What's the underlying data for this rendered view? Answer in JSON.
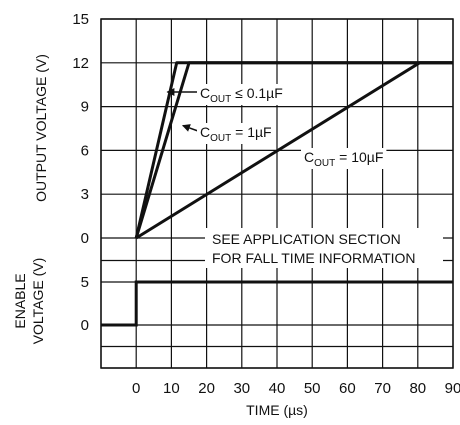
{
  "chart_data": {
    "type": "line",
    "xlabel": "TIME (µs)",
    "ylabel_output": "OUTPUT VOLTAGE (V)",
    "ylabel_enable_line1": "ENABLE",
    "ylabel_enable_line2": "VOLTAGE (V)",
    "xlim": [
      -10,
      90
    ],
    "x_ticks": [
      0,
      10,
      20,
      30,
      40,
      50,
      60,
      70,
      80,
      90
    ],
    "output_ylim": [
      0,
      15
    ],
    "output_y_ticks": [
      0,
      3,
      6,
      9,
      12,
      15
    ],
    "enable_y_ticks": [
      0,
      5
    ],
    "grid": true,
    "annotation_line1": "SEE APPLICATION SECTION",
    "annotation_line2": "FOR FALL TIME INFORMATION",
    "curve_labels": [
      {
        "c": "C",
        "sub": "OUT",
        "rest": " ≤ 0.1µF"
      },
      {
        "c": "C",
        "sub": "OUT",
        "rest": " = 1µF"
      },
      {
        "c": "C",
        "sub": "OUT",
        "rest": " = 10µF"
      }
    ],
    "series": [
      {
        "x": [
          0,
          11.5,
          90
        ],
        "y": [
          0,
          12,
          12
        ]
      },
      {
        "x": [
          0,
          15,
          90
        ],
        "y": [
          0,
          12,
          12
        ]
      },
      {
        "x": [
          0,
          80.5,
          90
        ],
        "y": [
          0,
          12,
          12
        ]
      }
    ],
    "enable_series": {
      "x": [
        -10,
        0,
        0,
        90
      ],
      "y": [
        0,
        0,
        5,
        5
      ]
    }
  }
}
